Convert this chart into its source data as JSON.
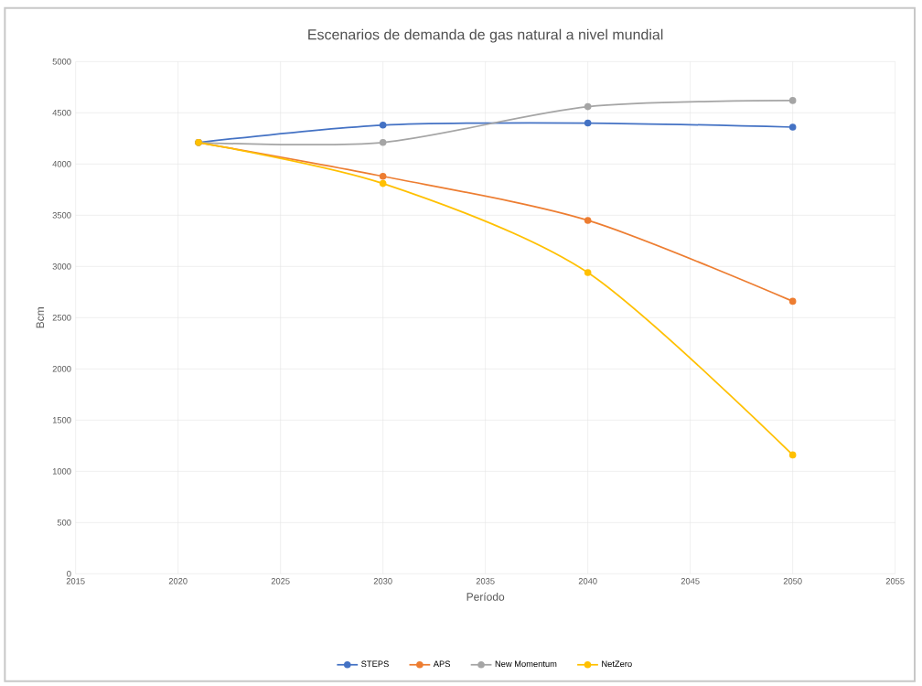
{
  "chart_data": {
    "type": "line",
    "title": "Escenarios de demanda de  gas natural a nivel mundial",
    "xlabel": "Período",
    "ylabel": "Bcm",
    "x": [
      2021,
      2030,
      2040,
      2050
    ],
    "series": [
      {
        "name": "STEPS",
        "color": "#4472c4",
        "values": [
          4210,
          4380,
          4400,
          4360
        ]
      },
      {
        "name": "APS",
        "color": "#ed7d31",
        "values": [
          4210,
          3880,
          3450,
          2660
        ]
      },
      {
        "name": "New Momentum",
        "color": "#a5a5a5",
        "values": [
          4210,
          4210,
          4560,
          4620
        ]
      },
      {
        "name": "NetZero",
        "color": "#ffc000",
        "values": [
          4210,
          3810,
          2940,
          1160
        ]
      }
    ],
    "xlim": [
      2015,
      2055
    ],
    "xticks": [
      2015,
      2020,
      2025,
      2030,
      2035,
      2040,
      2045,
      2050,
      2055
    ],
    "ylim": [
      0,
      5000
    ],
    "yticks": [
      0,
      500,
      1000,
      1500,
      2000,
      2500,
      3000,
      3500,
      4000,
      4500,
      5000
    ],
    "grid": true,
    "legend": "bottom",
    "marker": "circle",
    "line_style": "solid"
  }
}
